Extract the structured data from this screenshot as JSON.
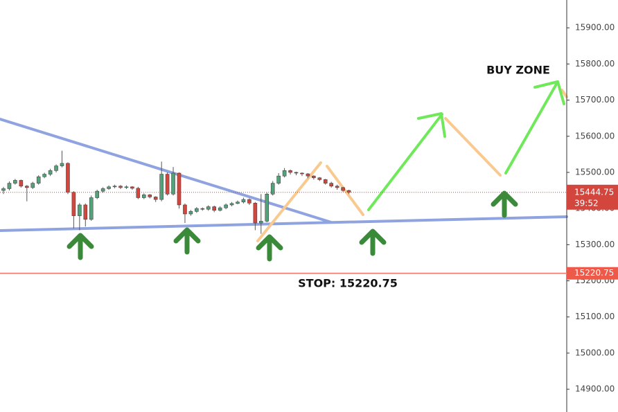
{
  "chart_data": {
    "type": "candlestick",
    "open": [
      15450,
      15455,
      15470,
      15478,
      15462,
      15458,
      15470,
      15488,
      15495,
      15505,
      15518,
      15525,
      15445,
      15380,
      15410,
      15370,
      15430,
      15448,
      15455,
      15460,
      15462,
      15458,
      15460,
      15456,
      15430,
      15438,
      15432,
      15425,
      15495,
      15440,
      15498,
      15410,
      15385,
      15392,
      15400,
      15398,
      15405,
      15395,
      15402,
      15410,
      15414,
      15418,
      15425,
      15415,
      15360,
      15365,
      15440,
      15470,
      15490,
      15505,
      15500,
      15498,
      15496,
      15490,
      15485,
      15480,
      15470,
      15462,
      15458,
      15450
    ],
    "high": [
      15460,
      15475,
      15482,
      15480,
      15465,
      15474,
      15492,
      15499,
      15510,
      15522,
      15560,
      15528,
      15448,
      15415,
      15414,
      15436,
      15452,
      15459,
      15464,
      15466,
      15465,
      15464,
      15462,
      15460,
      15442,
      15440,
      15434,
      15530,
      15500,
      15515,
      15500,
      15414,
      15396,
      15404,
      15403,
      15409,
      15408,
      15406,
      15414,
      15418,
      15422,
      15430,
      15428,
      15418,
      15440,
      15444,
      15476,
      15498,
      15512,
      15508,
      15502,
      15500,
      15498,
      15492,
      15487,
      15482,
      15474,
      15466,
      15460,
      15452
    ],
    "low": [
      15440,
      15450,
      15466,
      15458,
      15420,
      15454,
      15466,
      15484,
      15490,
      15500,
      15514,
      15440,
      15345,
      15340,
      15350,
      15366,
      15426,
      15444,
      15452,
      15456,
      15454,
      15454,
      15452,
      15426,
      15426,
      15428,
      15418,
      15420,
      15436,
      15436,
      15400,
      15360,
      15380,
      15388,
      15394,
      15394,
      15390,
      15392,
      15398,
      15406,
      15412,
      15414,
      15410,
      15340,
      15330,
      15362,
      15436,
      15466,
      15486,
      15494,
      15492,
      15490,
      15484,
      15480,
      15476,
      15466,
      15458,
      15452,
      15446,
      15440
    ],
    "close": [
      15455,
      15470,
      15478,
      15462,
      15458,
      15470,
      15488,
      15495,
      15505,
      15518,
      15525,
      15445,
      15380,
      15410,
      15370,
      15430,
      15448,
      15455,
      15460,
      15462,
      15458,
      15460,
      15456,
      15430,
      15438,
      15432,
      15425,
      15495,
      15440,
      15498,
      15410,
      15385,
      15392,
      15400,
      15398,
      15405,
      15395,
      15402,
      15410,
      15414,
      15418,
      15425,
      15415,
      15360,
      15365,
      15440,
      15470,
      15490,
      15505,
      15500,
      15498,
      15496,
      15490,
      15485,
      15480,
      15470,
      15462,
      15458,
      15450,
      15444.75
    ],
    "up_color": "#53a37a",
    "down_color": "#d2463d",
    "ylim": [
      14837,
      15977
    ],
    "yticks": [
      {
        "value": 14900,
        "label": "14900.00"
      },
      {
        "value": 15000,
        "label": "15000.00"
      },
      {
        "value": 15100,
        "label": "15100.00"
      },
      {
        "value": 15200,
        "label": "15200.00"
      },
      {
        "value": 15300,
        "label": "15300.00"
      },
      {
        "value": 15400,
        "label": "15400.00"
      },
      {
        "value": 15500,
        "label": "15500.00"
      },
      {
        "value": 15600,
        "label": "15600.00"
      },
      {
        "value": 15700,
        "label": "15700.00"
      },
      {
        "value": 15800,
        "label": "15800.00"
      },
      {
        "value": 15900,
        "label": "15900.00"
      }
    ],
    "last_price": 15444.75,
    "countdown": "39:52",
    "stop": 15220.75,
    "stop_text": "STOP: 15220.75",
    "buy_zone_text": "BUY ZONE"
  }
}
